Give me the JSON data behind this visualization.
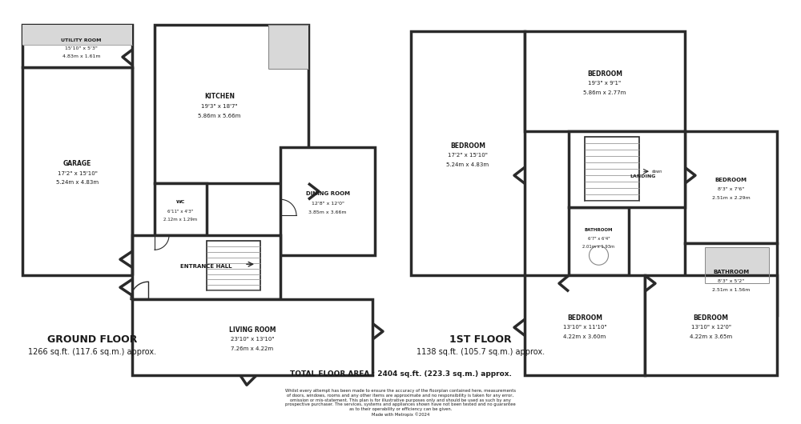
{
  "bg_color": "#ffffff",
  "wall_color": "#2a2a2a",
  "light_fill": "#d8d8d8",
  "total_area": "TOTAL FLOOR AREA : 2404 sq.ft. (223.3 sq.m.) approx.",
  "disclaimer": "Whilst every attempt has been made to ensure the accuracy of the floorplan contained here, measurements\nof doors, windows, rooms and any other items are approximate and no responsibility is taken for any error,\nomission or mis-statement. This plan is for illustrative purposes only and should be used as such by any\nprospective purchaser. The services, systems and appliances shown have not been tested and no guarantee\nas to their operability or efficiency can be given.\nMade with Metropix ©2024"
}
